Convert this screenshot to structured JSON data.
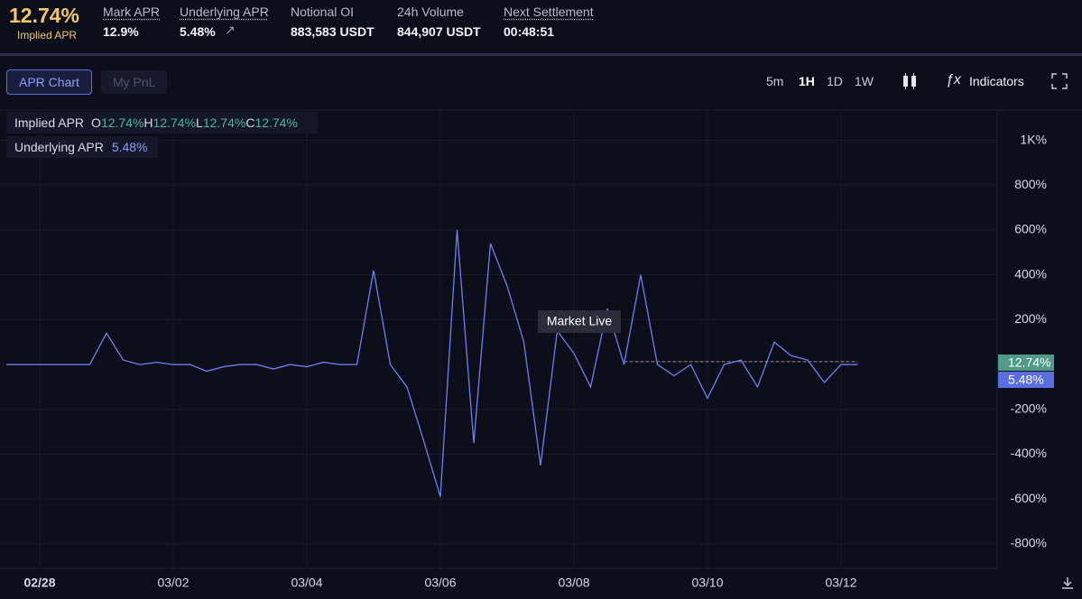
{
  "header": {
    "implied_apr": "12.74%",
    "implied_apr_label": "Implied APR",
    "stats": [
      {
        "label": "Mark APR",
        "value": "12.9%"
      },
      {
        "label": "Underlying APR",
        "value": "5.48%"
      },
      {
        "label": "Notional OI",
        "value": "883,583 USDT"
      },
      {
        "label": "24h Volume",
        "value": "844,907 USDT"
      },
      {
        "label": "Next Settlement",
        "value": "00:48:51"
      }
    ]
  },
  "tabs": [
    "APR Chart",
    "My PnL"
  ],
  "intervals": [
    "5m",
    "1H",
    "1D",
    "1W"
  ],
  "indicators": "Indicators",
  "chart_data": {
    "type": "line",
    "legend_ohlc": [
      {
        "label": "O",
        "value": "12.74%"
      },
      {
        "label": "H",
        "value": "12.74%"
      },
      {
        "label": "L",
        "value": "12.74%"
      },
      {
        "label": "C",
        "value": "12.74%"
      }
    ],
    "legend_underlying_value": "5.48%",
    "annotation": "Market Live",
    "categories": [
      null,
      null,
      "02/28",
      null,
      null,
      null,
      null,
      null,
      null,
      null,
      "03/02",
      null,
      null,
      null,
      null,
      null,
      null,
      null,
      "03/04",
      null,
      null,
      null,
      null,
      null,
      null,
      null,
      "03/06",
      null,
      null,
      null,
      null,
      null,
      null,
      null,
      "03/08",
      null,
      null,
      null,
      null,
      null,
      null,
      null,
      "03/10",
      null,
      null,
      null,
      null,
      null,
      null,
      null,
      "03/12",
      null
    ],
    "series": [
      {
        "name": "Underlying APR",
        "color": "#6f7ff5",
        "last_label": "5.48%",
        "values": [
          0,
          0,
          0,
          0,
          0,
          0,
          140,
          20,
          0,
          10,
          0,
          0,
          -30,
          -10,
          0,
          0,
          -20,
          0,
          -10,
          10,
          0,
          0,
          420,
          0,
          -100,
          -340,
          -590,
          600,
          -350,
          540,
          350,
          100,
          -450,
          150,
          50,
          -100,
          250,
          0,
          400,
          0,
          -50,
          0,
          -150,
          0,
          20,
          -100,
          100,
          40,
          20,
          -80,
          0,
          0
        ]
      },
      {
        "name": "Implied APR",
        "color": "#a08a8f",
        "last_label": "12.74%",
        "values": [
          null,
          null,
          null,
          null,
          null,
          null,
          null,
          null,
          null,
          null,
          null,
          null,
          null,
          null,
          null,
          null,
          null,
          null,
          null,
          null,
          null,
          null,
          null,
          null,
          null,
          null,
          null,
          null,
          null,
          null,
          null,
          null,
          null,
          null,
          null,
          null,
          null,
          12.74,
          12.74,
          12.74,
          12.74,
          12.74,
          12.74,
          12.74,
          12.74,
          12.74,
          12.74,
          12.74,
          12.74,
          12.74,
          12.74,
          12.74
        ]
      }
    ],
    "ylim": [
      -909,
      1135
    ],
    "yticks": [
      {
        "value": -800,
        "label": "-800%"
      },
      {
        "value": -600,
        "label": "-600%"
      },
      {
        "value": -400,
        "label": "-400%"
      },
      {
        "value": -200,
        "label": "-200%"
      },
      {
        "value": 200,
        "label": "200%"
      },
      {
        "value": 400,
        "label": "400%"
      },
      {
        "value": 600,
        "label": "600%"
      },
      {
        "value": 800,
        "label": "800%"
      },
      {
        "value": 1000,
        "label": "1K%"
      }
    ],
    "grid": true
  }
}
